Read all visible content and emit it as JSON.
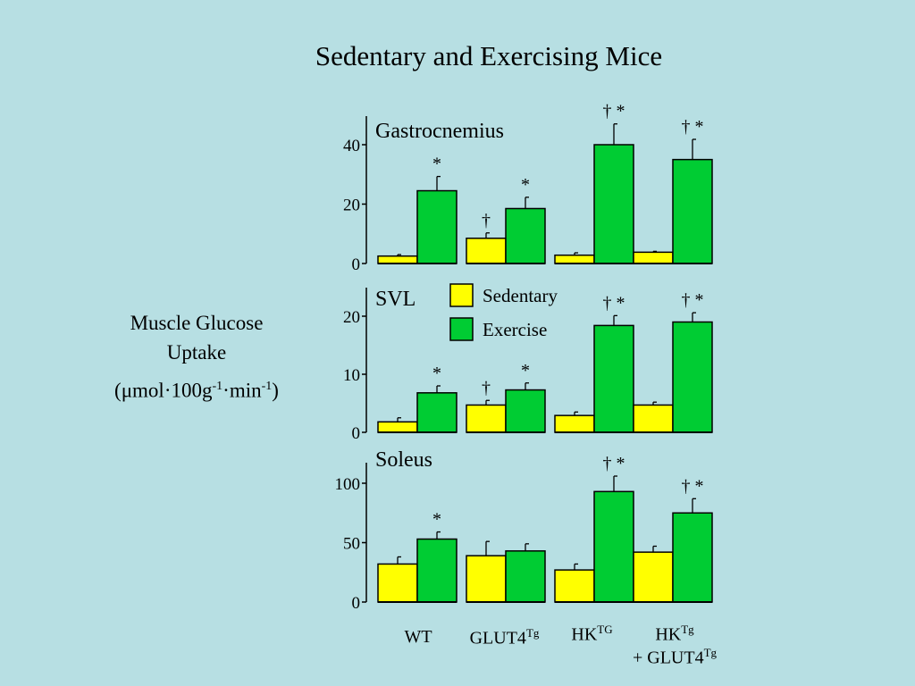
{
  "title": "Sedentary and Exercising Mice",
  "ylabel": {
    "line1": "Muscle Glucose",
    "line2": "Uptake",
    "line3_open": "(μmol·100g",
    "line3_sup1": "-1",
    "line3_mid": "·min",
    "line3_sup2": "-1",
    "line3_close": ")"
  },
  "groups": [
    {
      "label": "WT",
      "sup": "",
      "line2": ""
    },
    {
      "label": "GLUT4",
      "sup": "Tg",
      "line2": ""
    },
    {
      "label": "HK",
      "sup": "TG",
      "line2": ""
    },
    {
      "label": "HK",
      "sup": "Tg",
      "line2": "+ GLUT4",
      "line2_sup": "Tg"
    }
  ],
  "colors": {
    "background": "#b7dfe3",
    "sedentary": "#ffff00",
    "exercise": "#00cc33"
  },
  "chart_data": [
    {
      "type": "bar",
      "panel_label": "Gastrocnemius",
      "categories": [
        "WT",
        "GLUT4Tg",
        "HKTG",
        "HKTg + GLUT4Tg"
      ],
      "ylim": [
        0,
        50
      ],
      "yticks": [
        0,
        20,
        40
      ],
      "series": [
        {
          "name": "Sedentary",
          "values": [
            2.5,
            8.5,
            2.8,
            3.8
          ],
          "errors": [
            0.5,
            1.8,
            0.8,
            0.3
          ],
          "annotations": [
            "",
            "†",
            "",
            ""
          ]
        },
        {
          "name": "Exercise",
          "values": [
            24.5,
            18.5,
            40.0,
            35.0
          ],
          "errors": [
            4.8,
            3.8,
            7.0,
            6.8
          ],
          "annotations": [
            "*",
            "*",
            "† *",
            "† *"
          ]
        }
      ]
    },
    {
      "type": "bar",
      "panel_label": "SVL",
      "categories": [
        "WT",
        "GLUT4Tg",
        "HKTG",
        "HKTg + GLUT4Tg"
      ],
      "ylim": [
        0,
        25
      ],
      "yticks": [
        0,
        10,
        20
      ],
      "series": [
        {
          "name": "Sedentary",
          "values": [
            1.8,
            4.7,
            2.9,
            4.7
          ],
          "errors": [
            0.7,
            0.8,
            0.6,
            0.5
          ],
          "annotations": [
            "",
            "†",
            "",
            ""
          ]
        },
        {
          "name": "Exercise",
          "values": [
            6.8,
            7.3,
            18.4,
            19.0
          ],
          "errors": [
            1.2,
            1.2,
            1.7,
            1.6
          ],
          "annotations": [
            "*",
            "*",
            "† *",
            "† *"
          ]
        }
      ],
      "legend": [
        {
          "label": "Sedentary"
        },
        {
          "label": "Exercise"
        }
      ]
    },
    {
      "type": "bar",
      "panel_label": "Soleus",
      "categories": [
        "WT",
        "GLUT4Tg",
        "HKTG",
        "HKTg + GLUT4Tg"
      ],
      "ylim": [
        0,
        125
      ],
      "yticks": [
        0,
        50,
        100
      ],
      "series": [
        {
          "name": "Sedentary",
          "values": [
            32,
            39,
            27,
            42
          ],
          "errors": [
            6,
            12,
            5,
            5
          ],
          "annotations": [
            "",
            "",
            "",
            ""
          ]
        },
        {
          "name": "Exercise",
          "values": [
            53,
            43,
            93,
            75
          ],
          "errors": [
            6,
            6,
            13,
            12
          ],
          "annotations": [
            "*",
            "",
            "† *",
            "† *"
          ]
        }
      ]
    }
  ]
}
